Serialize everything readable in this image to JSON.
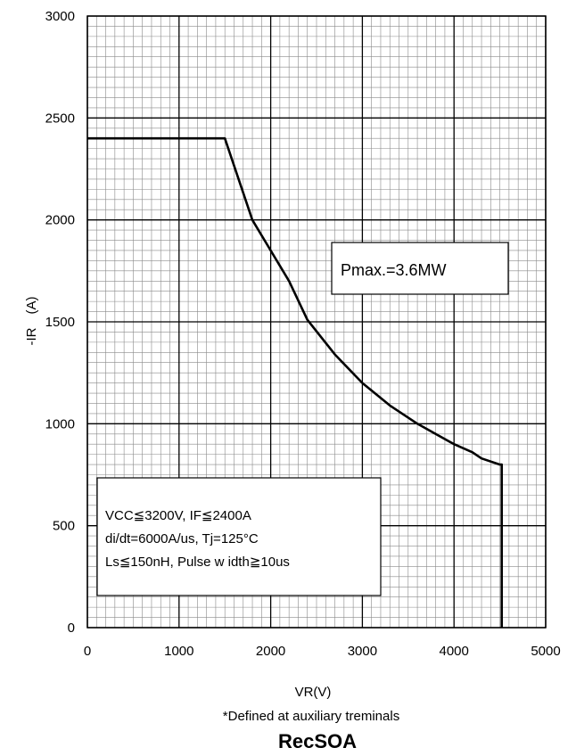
{
  "chart_data": {
    "type": "line",
    "title": "RecSOA",
    "xlabel": "VR(V)",
    "ylabel": "-IR　(A)",
    "footnote": "*Defined at auxiliary treminals",
    "xlim": [
      0,
      5000
    ],
    "ylim": [
      0,
      3000
    ],
    "x_ticks": [
      "0",
      "1000",
      "2000",
      "3000",
      "4000",
      "5000"
    ],
    "y_ticks": [
      "0",
      "500",
      "1000",
      "1500",
      "2000",
      "2500",
      "3000"
    ],
    "grid": true,
    "series": [
      {
        "x": [
          0,
          1500,
          1800,
          2000,
          2200,
          2400,
          2700,
          3000,
          3300,
          3600,
          3800,
          4000,
          4200,
          4300,
          4500,
          4520,
          4520
        ],
        "y": [
          2400,
          2400,
          2000,
          1850,
          1700,
          1510,
          1340,
          1200,
          1090,
          1000,
          950,
          900,
          860,
          830,
          800,
          800,
          0
        ]
      }
    ],
    "annotations": {
      "pmax": "Pmax.=3.6MW",
      "conditions": [
        "VCC≦3200V, IF≦2400A",
        "di/dt=6000A/us, Tj=125°C",
        "Ls≦150nH, Pulse w idth≧10us"
      ]
    }
  }
}
